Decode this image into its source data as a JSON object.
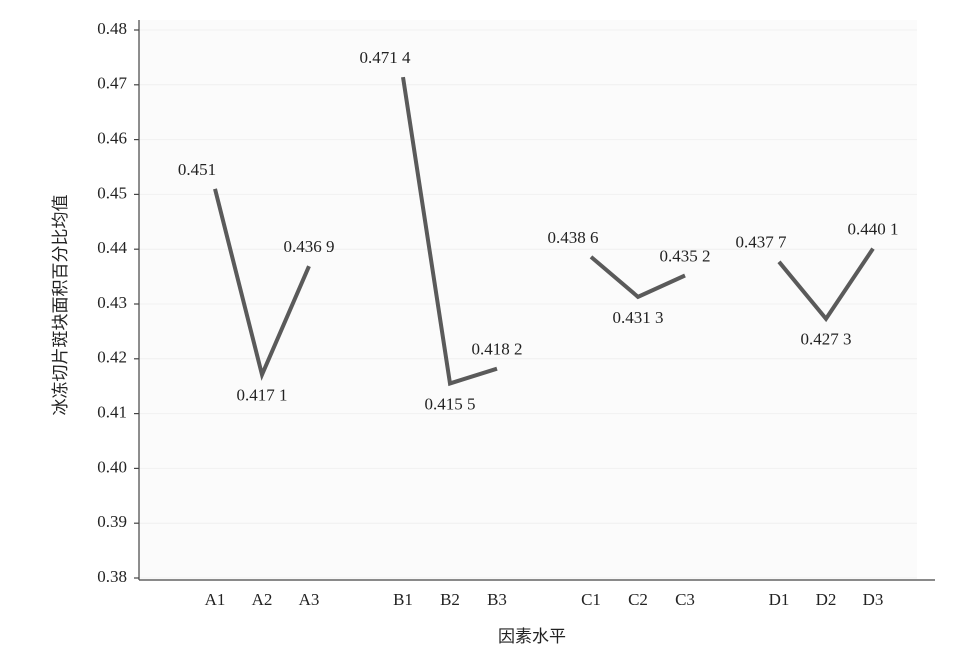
{
  "chart_data": {
    "type": "line",
    "x_label": "因素水平",
    "y_label": "冰冻切片斑块面积百分比均值",
    "categories": [
      "A1",
      "A2",
      "A3",
      null,
      "B1",
      "B2",
      "B3",
      null,
      "C1",
      "C2",
      "C3",
      null,
      "D1",
      "D2",
      "D3"
    ],
    "values": [
      0.451,
      0.4171,
      0.4369,
      null,
      0.4714,
      0.4155,
      0.4182,
      null,
      0.4386,
      0.4313,
      0.4352,
      null,
      0.4377,
      0.4273,
      0.4401
    ],
    "value_labels": [
      "0.451",
      "0.417 1",
      "0.436 9",
      null,
      "0.471 4",
      "0.415 5",
      "0.418 2",
      null,
      "0.438 6",
      "0.431 3",
      "0.435 2",
      null,
      "0.437 7",
      "0.427 3",
      "0.440 1"
    ],
    "color": "#5a5a5a",
    "ylim": [
      0.38,
      0.48
    ],
    "yticks": [
      0.38,
      0.39,
      {
        "value": 0.4,
        "label": "0.40"
      },
      0.41,
      0.42,
      0.43,
      0.44,
      0.45,
      0.46,
      0.47,
      0.48
    ],
    "grid": true
  }
}
